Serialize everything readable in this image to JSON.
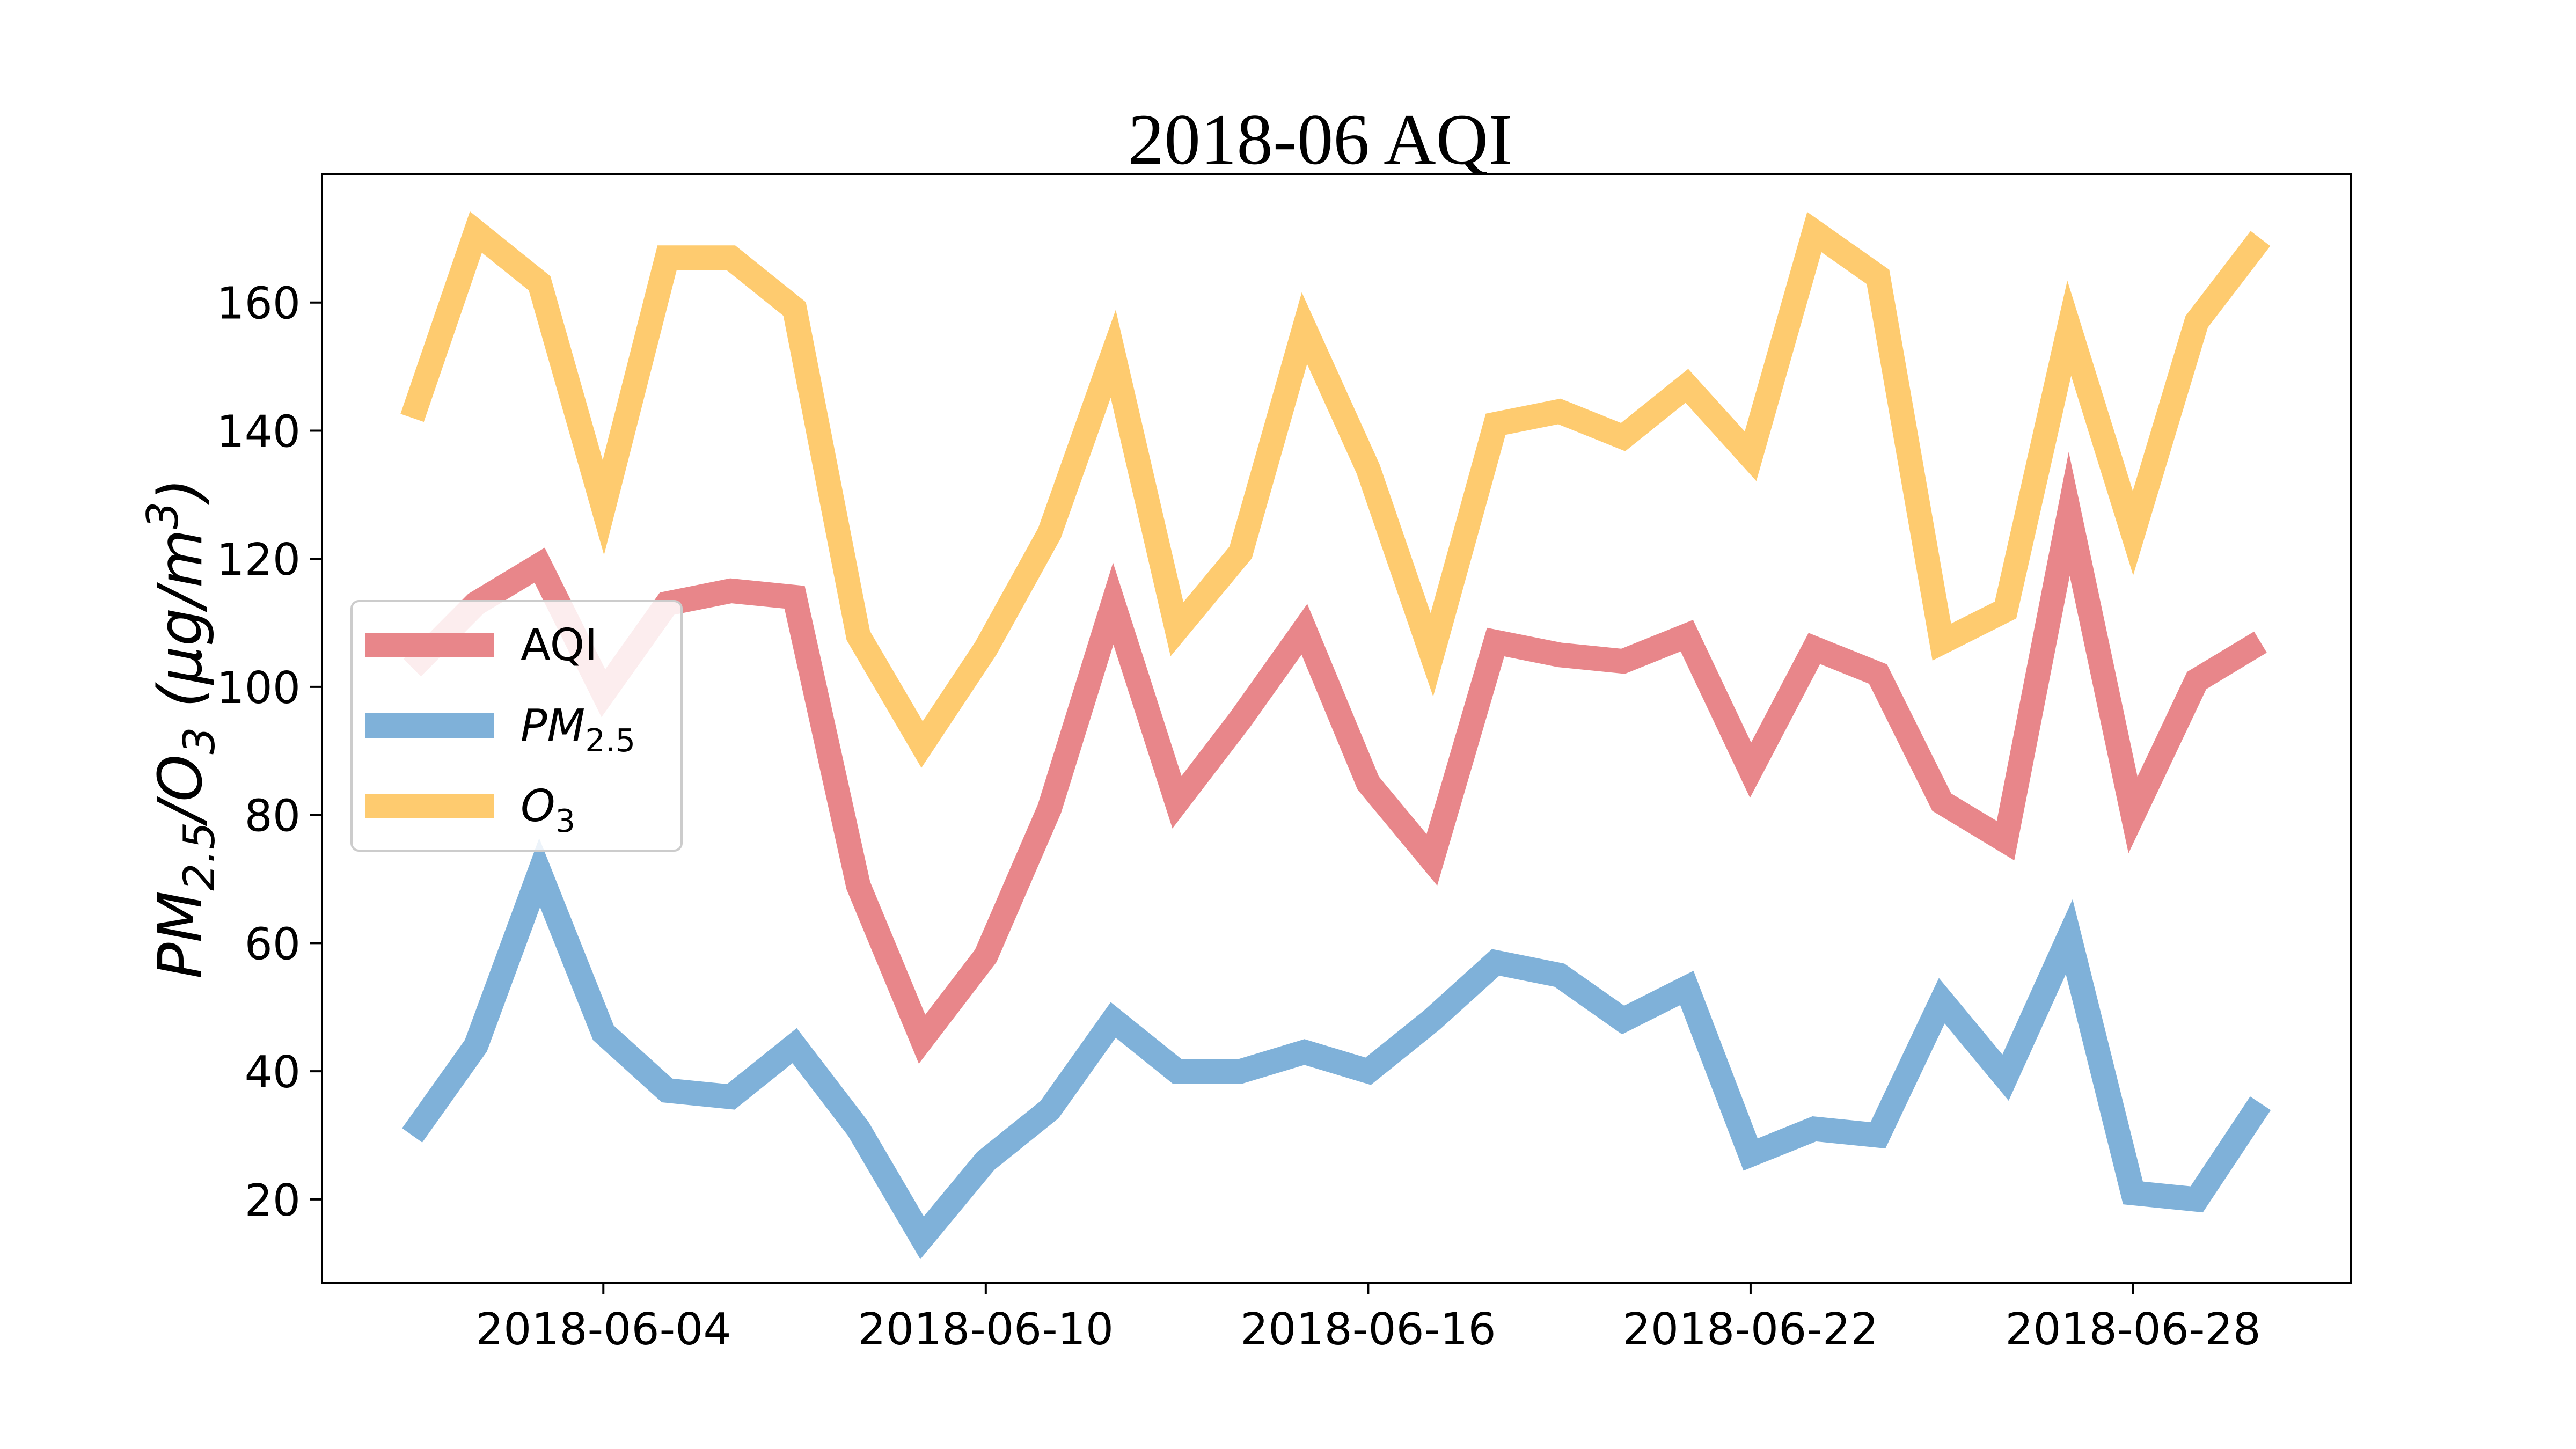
{
  "chart_data": {
    "type": "line",
    "title": "2018-06 AQI",
    "ylabel": {
      "base": "PM",
      "sub1": "2.5",
      "sep": "/O",
      "sub2": "3",
      "unit_open": "  (µg/m",
      "unit_sup": "3",
      "unit_close": ")"
    },
    "xlabel": "",
    "x_start": "2018-06-01",
    "x_tick_labels": [
      "2018-06-04",
      "2018-06-10",
      "2018-06-16",
      "2018-06-22",
      "2018-06-28"
    ],
    "x_tick_days": [
      4,
      10,
      16,
      22,
      28
    ],
    "y_ticks": [
      20,
      40,
      60,
      80,
      100,
      120,
      140,
      160
    ],
    "xlim": [
      "2018-05-30 12:00",
      "2018-07-02"
    ],
    "ylim": [
      7,
      180
    ],
    "grid": false,
    "legend_position": "center-left",
    "days": [
      1,
      2,
      3,
      4,
      5,
      6,
      7,
      8,
      9,
      10,
      11,
      12,
      13,
      14,
      15,
      16,
      17,
      18,
      19,
      20,
      21,
      22,
      23,
      24,
      25,
      26,
      27,
      28,
      29,
      30
    ],
    "series": [
      {
        "name": "AQI",
        "legend": {
          "text": "AQI",
          "sub": ""
        },
        "color": "#E8868A",
        "values": [
          103,
          113,
          119,
          99,
          113,
          115,
          114,
          69,
          45,
          58,
          81,
          113,
          82,
          95,
          109,
          85,
          73,
          107,
          105,
          104,
          108,
          87,
          106,
          102,
          82,
          76,
          127,
          80,
          101,
          107
        ]
      },
      {
        "name": "PM2.5",
        "legend": {
          "text": "PM",
          "sub": "2.5"
        },
        "color": "#7FB1D9",
        "values": [
          30,
          44,
          71,
          46,
          37,
          36,
          44,
          31,
          14,
          26,
          34,
          48,
          40,
          40,
          43,
          40,
          48,
          57,
          55,
          48,
          53,
          27,
          31,
          30,
          51,
          39,
          61,
          21,
          20,
          35
        ]
      },
      {
        "name": "O3",
        "legend": {
          "text": "O",
          "sub": "3"
        },
        "color": "#FECB6F",
        "values": [
          142,
          171,
          163,
          128,
          167,
          167,
          159,
          108,
          91,
          106,
          124,
          152,
          109,
          121,
          156,
          134,
          105,
          141,
          143,
          139,
          147,
          136,
          171,
          164,
          107,
          112,
          156,
          124,
          157,
          170
        ]
      }
    ]
  }
}
